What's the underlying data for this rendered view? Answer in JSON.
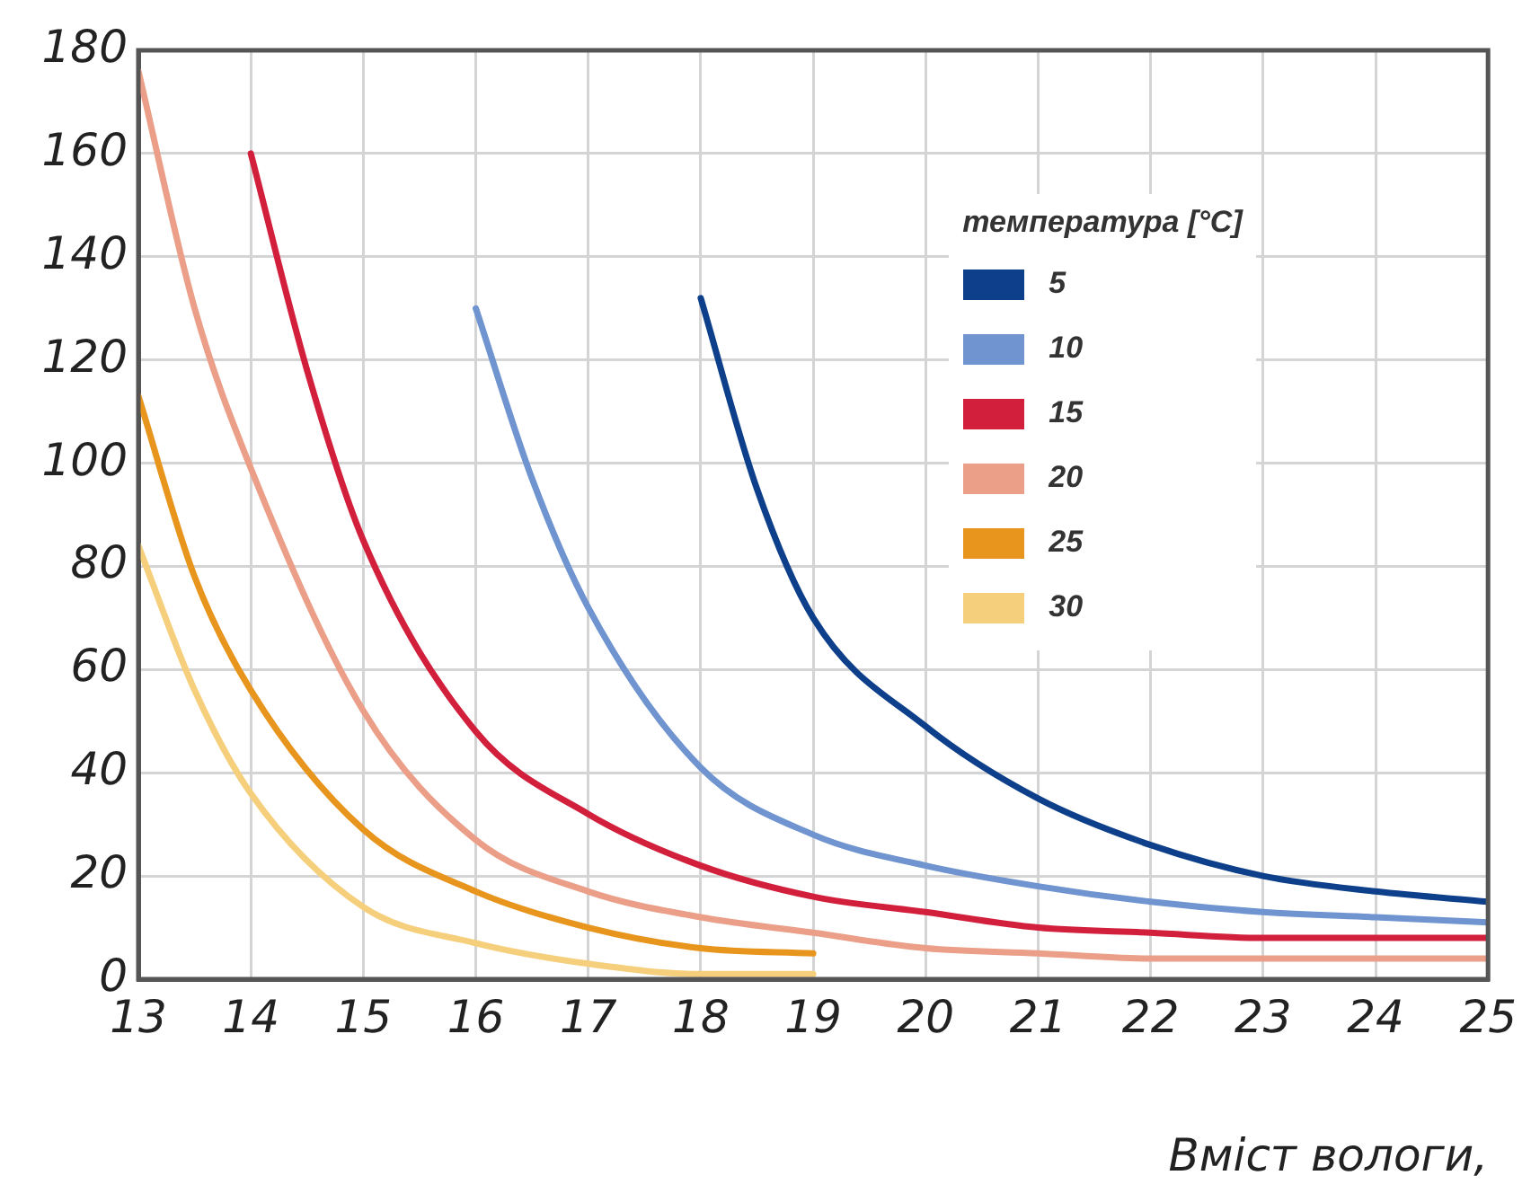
{
  "chart_data": {
    "type": "line",
    "xlabel": "Вміст вологи,",
    "legend_title": "температура [°C]",
    "legend": "top right",
    "grid": true,
    "marker": "none",
    "line_style": "solid",
    "xlim": [
      13,
      25
    ],
    "xticks": [
      13,
      14,
      15,
      16,
      17,
      18,
      19,
      20,
      21,
      22,
      23,
      24,
      25
    ],
    "ylim": [
      0,
      180
    ],
    "yticks": [
      0,
      20,
      40,
      60,
      80,
      100,
      120,
      140,
      160,
      180
    ],
    "series": [
      {
        "name": "5",
        "color": "#0d3f8a",
        "x": [
          18,
          18.5,
          19,
          20,
          21,
          22,
          23,
          24,
          25
        ],
        "values": [
          132,
          95,
          70,
          49,
          35,
          26,
          20,
          17,
          15
        ]
      },
      {
        "name": "10",
        "color": "#6f94cf",
        "x": [
          16,
          16.5,
          17,
          18,
          19,
          20,
          21,
          22,
          23,
          24,
          25
        ],
        "values": [
          130,
          97,
          72,
          41,
          28,
          22,
          18,
          15,
          13,
          12,
          11
        ]
      },
      {
        "name": "15",
        "color": "#d21f3c",
        "x": [
          14,
          14.5,
          15,
          16,
          17,
          18,
          19,
          20,
          21,
          22,
          23,
          24,
          25
        ],
        "values": [
          160,
          118,
          85,
          48,
          32,
          22,
          16,
          13,
          10,
          9,
          8,
          8,
          8
        ]
      },
      {
        "name": "20",
        "color": "#eb9f88",
        "x": [
          13,
          13.5,
          14,
          15,
          16,
          17,
          18,
          19,
          20,
          21,
          22,
          23,
          24,
          25
        ],
        "values": [
          176,
          130,
          99,
          52,
          27,
          17,
          12,
          9,
          6,
          5,
          4,
          4,
          4,
          4
        ]
      },
      {
        "name": "25",
        "color": "#e8951e",
        "x": [
          13,
          13.5,
          14,
          15,
          16,
          17,
          18,
          19
        ],
        "values": [
          113,
          78,
          56,
          29,
          17,
          10,
          6,
          5
        ]
      },
      {
        "name": "30",
        "color": "#f5cf7b",
        "x": [
          13,
          13.5,
          14,
          15,
          16,
          17,
          18,
          19
        ],
        "values": [
          84,
          56,
          36,
          14,
          7,
          3,
          1,
          1
        ]
      }
    ]
  }
}
